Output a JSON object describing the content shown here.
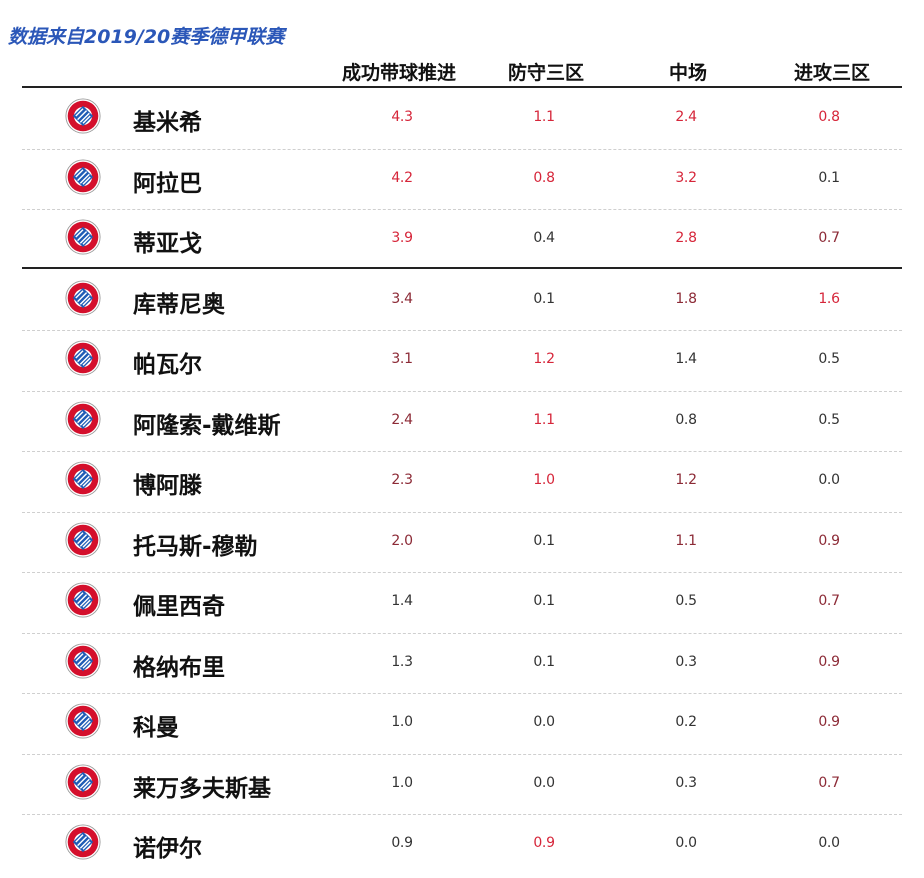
{
  "source_note": "数据来自2019/20赛季德甲联赛",
  "colors": {
    "source_note": "#2b57b8",
    "highlight_strong": "#d6263a",
    "highlight_medium": "#8c2a36",
    "value_default": "#333333",
    "logo_red": "#d40f2c",
    "logo_blue": "#1f5bb5"
  },
  "logo_icon": "fc-bayern-badge-icon",
  "chart_data": {
    "type": "table",
    "columns": [
      "成功带球推进",
      "防守三区",
      "中场",
      "进攻三区"
    ],
    "rows": [
      {
        "player": "基米希",
        "values": [
          "4.3",
          "1.1",
          "2.4",
          "0.8"
        ],
        "levels": [
          "strong",
          "strong",
          "strong",
          "strong"
        ]
      },
      {
        "player": "阿拉巴",
        "values": [
          "4.2",
          "0.8",
          "3.2",
          "0.1"
        ],
        "levels": [
          "strong",
          "strong",
          "strong",
          "none"
        ]
      },
      {
        "player": "蒂亚戈",
        "values": [
          "3.9",
          "0.4",
          "2.8",
          "0.7"
        ],
        "levels": [
          "strong",
          "none",
          "strong",
          "medium"
        ]
      },
      {
        "player": "库蒂尼奥",
        "values": [
          "3.4",
          "0.1",
          "1.8",
          "1.6"
        ],
        "levels": [
          "medium",
          "none",
          "medium",
          "strong"
        ]
      },
      {
        "player": "帕瓦尔",
        "values": [
          "3.1",
          "1.2",
          "1.4",
          "0.5"
        ],
        "levels": [
          "medium",
          "strong",
          "none",
          "none"
        ]
      },
      {
        "player": "阿隆索-戴维斯",
        "values": [
          "2.4",
          "1.1",
          "0.8",
          "0.5"
        ],
        "levels": [
          "medium",
          "strong",
          "none",
          "none"
        ]
      },
      {
        "player": "博阿滕",
        "values": [
          "2.3",
          "1.0",
          "1.2",
          "0.0"
        ],
        "levels": [
          "medium",
          "strong",
          "medium",
          "none"
        ]
      },
      {
        "player": "托马斯-穆勒",
        "values": [
          "2.0",
          "0.1",
          "1.1",
          "0.9"
        ],
        "levels": [
          "medium",
          "none",
          "medium",
          "medium"
        ]
      },
      {
        "player": "佩里西奇",
        "values": [
          "1.4",
          "0.1",
          "0.5",
          "0.7"
        ],
        "levels": [
          "none",
          "none",
          "none",
          "medium"
        ]
      },
      {
        "player": "格纳布里",
        "values": [
          "1.3",
          "0.1",
          "0.3",
          "0.9"
        ],
        "levels": [
          "none",
          "none",
          "none",
          "medium"
        ]
      },
      {
        "player": "科曼",
        "values": [
          "1.0",
          "0.0",
          "0.2",
          "0.9"
        ],
        "levels": [
          "none",
          "none",
          "none",
          "medium"
        ]
      },
      {
        "player": "莱万多夫斯基",
        "values": [
          "1.0",
          "0.0",
          "0.3",
          "0.7"
        ],
        "levels": [
          "none",
          "none",
          "none",
          "medium"
        ]
      },
      {
        "player": "诺伊尔",
        "values": [
          "0.9",
          "0.9",
          "0.0",
          "0.0"
        ],
        "levels": [
          "none",
          "strong",
          "none",
          "none"
        ]
      }
    ]
  }
}
